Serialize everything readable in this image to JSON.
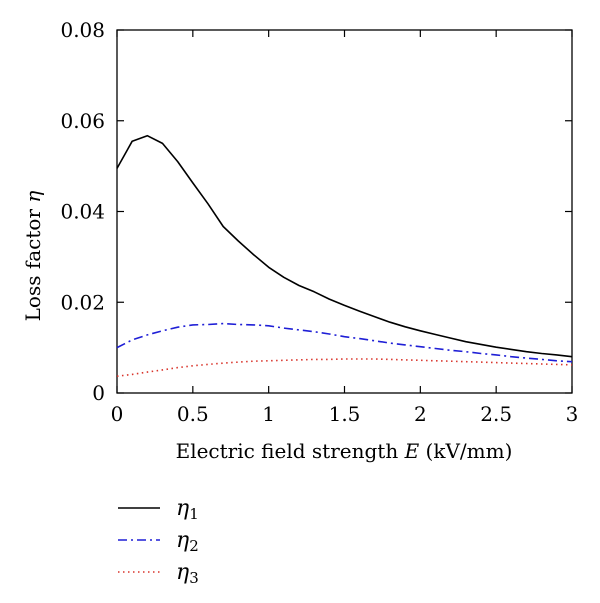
{
  "chart_data": {
    "type": "line",
    "xlabel": {
      "prefix": "Electric field strength ",
      "var": "E",
      "suffix": " (kV/mm)"
    },
    "ylabel": {
      "prefix": "Loss factor ",
      "var": "η"
    },
    "xlim": [
      0,
      3
    ],
    "ylim": [
      0,
      0.08
    ],
    "x_ticks": [
      "0",
      "0.5",
      "1",
      "1.5",
      "2",
      "2.5",
      "3"
    ],
    "y_ticks": [
      "0",
      "0.02",
      "0.04",
      "0.06",
      "0.08"
    ],
    "grid": false,
    "legend_position": "bottom-left (below plot)",
    "series": [
      {
        "name": "η1",
        "symbol": "η",
        "sub": "1",
        "color": "#000000",
        "style": "solid",
        "x": [
          0,
          0.1,
          0.2,
          0.3,
          0.4,
          0.5,
          0.6,
          0.7,
          0.8,
          0.9,
          1.0,
          1.1,
          1.2,
          1.3,
          1.4,
          1.5,
          1.6,
          1.7,
          1.8,
          1.9,
          2.0,
          2.1,
          2.2,
          2.3,
          2.4,
          2.5,
          2.6,
          2.7,
          2.8,
          2.9,
          3.0
        ],
        "y": [
          0.0495,
          0.0555,
          0.0567,
          0.055,
          0.051,
          0.0463,
          0.0417,
          0.0367,
          0.0335,
          0.0305,
          0.0277,
          0.0255,
          0.0237,
          0.0223,
          0.0207,
          0.0193,
          0.018,
          0.0168,
          0.0156,
          0.0146,
          0.0137,
          0.0129,
          0.0121,
          0.0113,
          0.0107,
          0.0101,
          0.0096,
          0.0091,
          0.0087,
          0.0084,
          0.008
        ]
      },
      {
        "name": "η2",
        "symbol": "η",
        "sub": "2",
        "color": "#1f1fd6",
        "style": "dashdot",
        "x": [
          0,
          0.1,
          0.2,
          0.3,
          0.4,
          0.5,
          0.6,
          0.7,
          0.8,
          0.9,
          1.0,
          1.1,
          1.2,
          1.3,
          1.4,
          1.5,
          1.6,
          1.7,
          1.8,
          1.9,
          2.0,
          2.1,
          2.2,
          2.3,
          2.4,
          2.5,
          2.6,
          2.7,
          2.8,
          2.9,
          3.0
        ],
        "y": [
          0.01,
          0.0117,
          0.0128,
          0.0137,
          0.0145,
          0.015,
          0.0151,
          0.0153,
          0.0151,
          0.015,
          0.0148,
          0.0143,
          0.0139,
          0.0135,
          0.013,
          0.0124,
          0.012,
          0.0115,
          0.011,
          0.0106,
          0.0102,
          0.0098,
          0.0094,
          0.0091,
          0.0087,
          0.0084,
          0.008,
          0.0077,
          0.0074,
          0.0071,
          0.0069
        ]
      },
      {
        "name": "η3",
        "symbol": "η",
        "sub": "3",
        "color": "#d9342b",
        "style": "dotted",
        "x": [
          0,
          0.1,
          0.2,
          0.3,
          0.4,
          0.5,
          0.6,
          0.7,
          0.8,
          0.9,
          1.0,
          1.1,
          1.2,
          1.3,
          1.4,
          1.5,
          1.6,
          1.7,
          1.8,
          1.9,
          2.0,
          2.1,
          2.2,
          2.3,
          2.4,
          2.5,
          2.6,
          2.7,
          2.8,
          2.9,
          3.0
        ],
        "y": [
          0.0037,
          0.0041,
          0.0046,
          0.0051,
          0.0056,
          0.006,
          0.0063,
          0.0066,
          0.0068,
          0.007,
          0.0071,
          0.0072,
          0.0073,
          0.0074,
          0.0074,
          0.0075,
          0.0075,
          0.0075,
          0.0074,
          0.0073,
          0.0072,
          0.0071,
          0.007,
          0.0069,
          0.0068,
          0.0067,
          0.0066,
          0.0065,
          0.0064,
          0.0063,
          0.0062
        ]
      }
    ]
  }
}
